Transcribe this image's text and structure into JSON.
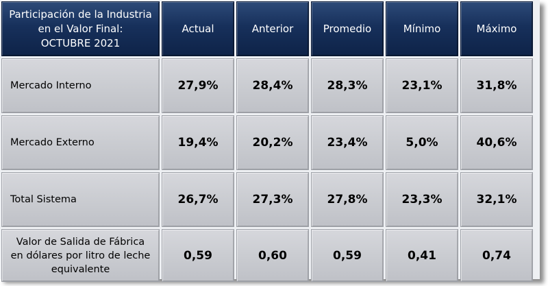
{
  "table": {
    "title_lines": [
      "Participación de la Industria",
      "en el Valor Final:",
      "OCTUBRE 2021"
    ],
    "columns": [
      "Actual",
      "Anterior",
      "Promedio",
      "Mínimo",
      "Máximo"
    ],
    "rows": [
      {
        "label_lines": [
          "Mercado Interno"
        ],
        "values": [
          "27,9%",
          "28,4%",
          "28,3%",
          "23,1%",
          "31,8%"
        ]
      },
      {
        "label_lines": [
          "Mercado Externo"
        ],
        "values": [
          "19,4%",
          "20,2%",
          "23,4%",
          "5,0%",
          "40,6%"
        ]
      },
      {
        "label_lines": [
          "Total Sistema"
        ],
        "values": [
          "26,7%",
          "27,3%",
          "27,8%",
          "23,3%",
          "32,1%"
        ]
      },
      {
        "label_lines": [
          "Valor de Salida de Fábrica",
          "en dólares por litro de leche",
          "equivalente"
        ],
        "values": [
          "0,59",
          "0,60",
          "0,59",
          "0,41",
          "0,74"
        ]
      }
    ]
  },
  "colors": {
    "header_bg": "#17305b",
    "header_text": "#ffffff",
    "cell_bg": "#c9cbd0"
  }
}
